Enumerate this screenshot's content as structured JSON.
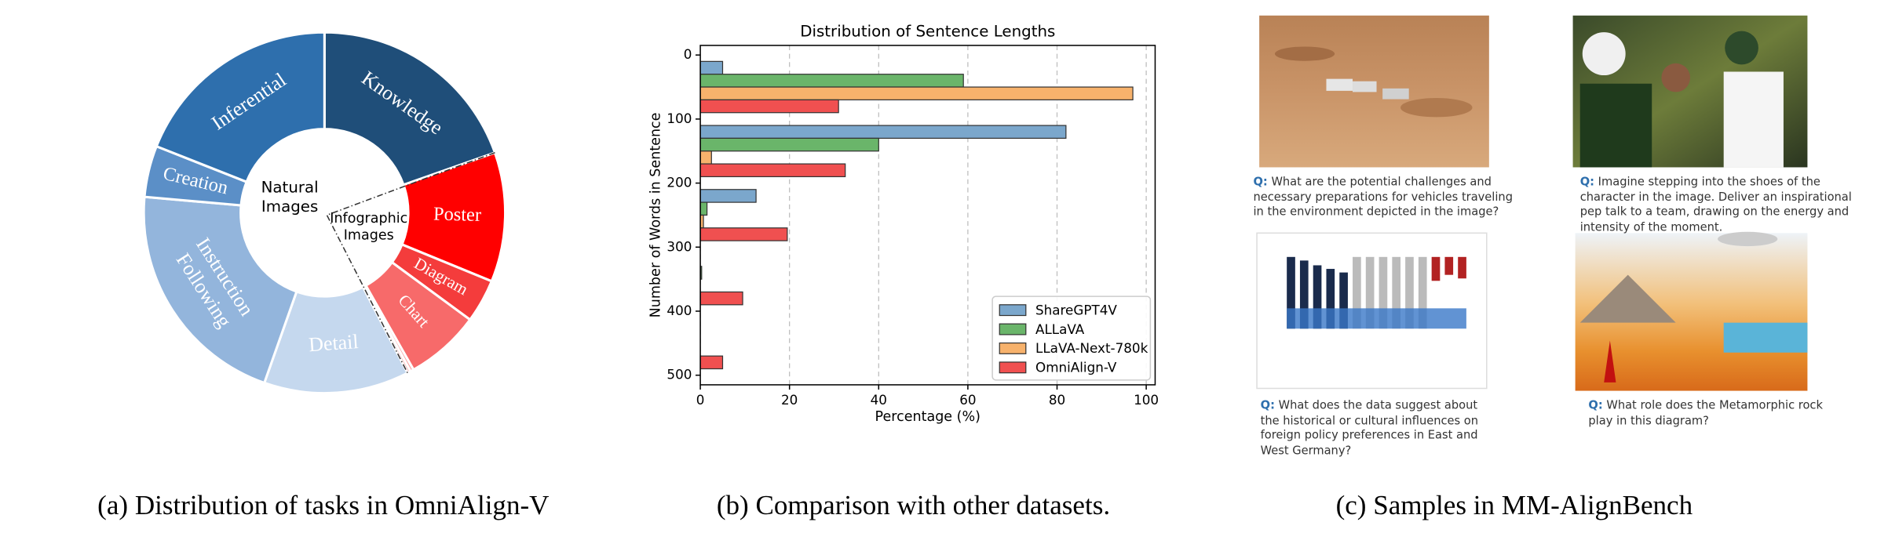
{
  "chart_data": [
    {
      "type": "pie",
      "categories": [
        "Knowledge",
        "Poster",
        "Diagram",
        "Chart",
        null,
        null,
        "Detail",
        "Instruction Following",
        "Creation",
        "Inferential"
      ],
      "values": [
        19.6,
        11.6,
        3.9,
        6.7,
        0.3,
        0.3,
        13,
        21,
        4.6,
        19
      ],
      "colors": [
        "#1f4e79",
        "#ff0000",
        "#f43c3c",
        "#f76a6a",
        "#f9a0a0",
        "#fbc4c4",
        "#c5d8ee",
        "#93b5dc",
        "#5b8fc7",
        "#2e6fad"
      ],
      "annotations": [
        "Natural Images",
        "Infographic Images"
      ]
    },
    {
      "type": "bar",
      "orientation": "horizontal",
      "title": "Distribution of Sentence Lengths",
      "xlabel": "Percentage (%)",
      "ylabel": "Number of Words in Sentence",
      "y": [
        50,
        150,
        250,
        350,
        450
      ],
      "series": [
        {
          "name": "ShareGPT4V",
          "color": "#7ba7cc",
          "values": [
            5,
            82,
            12.5,
            0,
            0
          ]
        },
        {
          "name": "ALLaVA",
          "color": "#6ab56a",
          "values": [
            59,
            40,
            1.5,
            0.3,
            0
          ]
        },
        {
          "name": "LLaVA-Next-780k",
          "color": "#f7b26c",
          "values": [
            97,
            2.5,
            0.7,
            0,
            0
          ]
        },
        {
          "name": "OmniAlign-V",
          "color": "#f05050",
          "values": [
            31,
            32.5,
            19.5,
            9.5,
            5
          ]
        }
      ],
      "xlim": [
        0,
        102
      ],
      "ylim": [
        -15,
        515
      ],
      "y_inverted": true,
      "xticks": [
        0,
        20,
        40,
        60,
        80,
        100
      ],
      "yticks": [
        0,
        100,
        200,
        300,
        400,
        500
      ],
      "grid": "x",
      "legend": "lower right"
    }
  ],
  "captions": [
    "(a) Distribution of tasks in OmniAlign-V",
    "(b) Comparison with other datasets.",
    "(c) Samples in MM-AlignBench"
  ],
  "samples": [
    {
      "q_label": "Q:",
      "question": "What are the potential challenges and necessary preparations for vehicles traveling in the environment depicted in the image?"
    },
    {
      "q_label": "Q:",
      "question": "Imagine stepping into the shoes of the character in the image. Deliver an inspirational pep talk to a team, drawing on the energy and intensity of the moment."
    },
    {
      "q_label": "Q:",
      "question": "What does the data suggest about the historical or cultural influences on foreign policy preferences in East and West Germany?"
    },
    {
      "q_label": "Q:",
      "question": "What role does the Metamorphic rock play in this diagram?"
    }
  ]
}
